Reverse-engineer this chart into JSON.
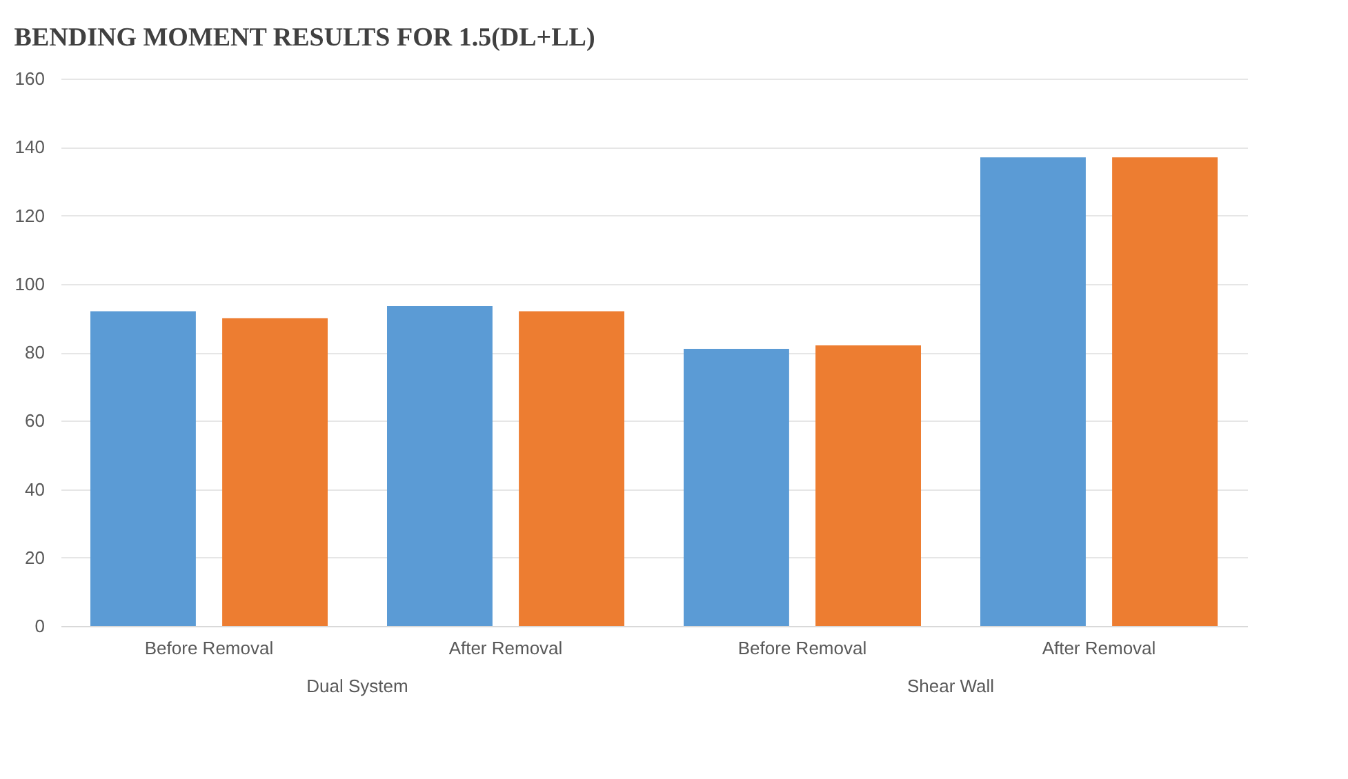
{
  "chart_data": {
    "type": "bar",
    "title": "BENDING MOMENT RESULTS FOR 1.5(DL+LL)",
    "categories": [
      "Before Removal",
      "After Removal",
      "Before Removal",
      "After Removal"
    ],
    "series": [
      {
        "color": "#5b9bd5",
        "values": [
          92,
          93.5,
          81,
          137
        ]
      },
      {
        "color": "#ed7d31",
        "values": [
          90,
          92,
          82,
          137
        ]
      }
    ],
    "annotations": [
      "Dual System",
      "Shear Wall"
    ],
    "ylim": [
      0,
      160
    ],
    "yticks": [
      0,
      20,
      40,
      60,
      80,
      100,
      120,
      140,
      160
    ],
    "grid": "y"
  }
}
